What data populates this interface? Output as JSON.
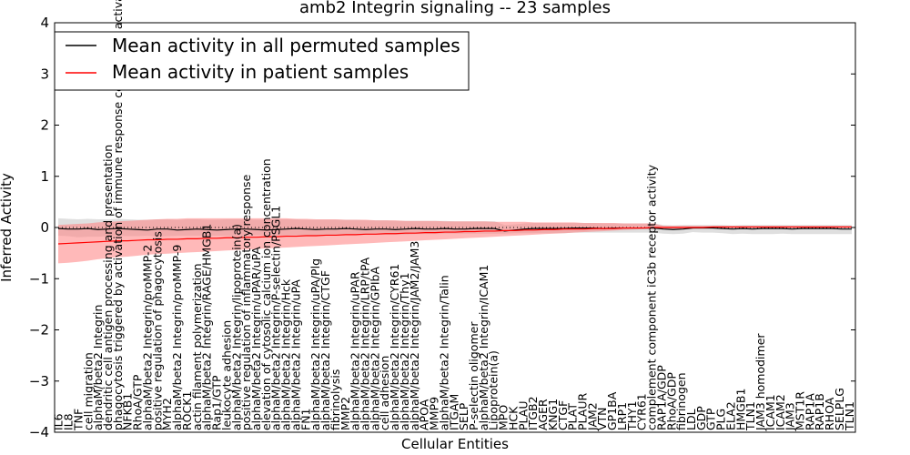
{
  "chart_data": {
    "type": "line",
    "title": "amb2 Integrin signaling -- 23 samples",
    "xlabel": "Cellular Entities",
    "ylabel": "Inferred Activity",
    "ylim": [
      -4,
      4
    ],
    "yticks": [
      -4,
      -3,
      -2,
      -1,
      0,
      1,
      2,
      3,
      4
    ],
    "ytick_labels": [
      "−4",
      "−3",
      "−2",
      "−1",
      "0",
      "1",
      "2",
      "3",
      "4"
    ],
    "legend_position": "top-left",
    "colors": {
      "permuted": "#000000",
      "patient": "#ff0000",
      "permuted_band": "#bfbfbf",
      "patient_band": "#ff8080"
    },
    "categories": [
      "IL6",
      "IL8",
      "TNF",
      "cell migration",
      "alphaM/beta2 Integrin",
      "dendritic cell antigen processing and presentation",
      "phagocytosis triggered by activation of immune response cell surface activating receptor",
      "NFKB1",
      "RhoA/GTP",
      "alphaM/beta2 Integrin/proMMP-2",
      "positive regulation of phagocytosis",
      "MYH2",
      "alphaM/beta2 Integrin/proMMP-9",
      "ROCK1",
      "actin filament polymerization",
      "alphaM/beta2 Integrin/RAGE/HMGB1",
      "Rap1/GTP",
      "leukocyte adhesion",
      "alphaM/beta2 Integrin/lipoprotein(a)",
      "positive regulation of inflammatory response",
      "alphaM/beta2 Integrin/uPAR/uPA",
      "elevation of cytosolic calcium ion concentration",
      "alphaM/beta2 Integrin/P-selectin/PSGL1",
      "alphaM/beta2 Integrin/Hck",
      "alphaM/beta2 Integrin/uPA",
      "FN1",
      "alphaM/beta2 Integrin/uPA/Plg",
      "alphaM/beta2 Integrin/CTGF",
      "fibrinolysis",
      "MMP2",
      "alphaM/beta2 Integrin/uPAR",
      "alphaM/beta2 Integrin/LRP/tPA",
      "alphaM/beta2 Integrin/GPIbA",
      "cell adhesion",
      "alphaM/beta2 Integrin/CYR61",
      "alphaM/beta2 Integrin/Thy1",
      "alphaM/beta2 Integrin/JAM2/JAM3",
      "APOA",
      "MMP9",
      "alphaM/beta2 Integrin/Talin",
      "ITGAM",
      "SELP",
      "P-selectin oligomer",
      "alphaM/beta2 Integrin/ICAM1",
      "Lipoprotein(a)",
      "MPO",
      "HCK",
      "PLAU",
      "ITGB2",
      "AGER",
      "KNG1",
      "CTGF",
      "PLAT",
      "PLAUR",
      "JAM2",
      "VTN",
      "GP1BA",
      "LRP1",
      "THY1",
      "CYR61",
      "complement component iC3b receptor activity",
      "RAP1A/GDP",
      "RhoA/GDP",
      "fibrinogen",
      "LDL",
      "GDP",
      "GTP",
      "PLG",
      "ELA2",
      "HMGB1",
      "TLN1",
      "JAM3 homodimer",
      "ICAM1",
      "ICAM2",
      "JAM3",
      "MST1R",
      "RAP1A",
      "RAP1B",
      "RHOA",
      "SELPLG",
      "TLN1"
    ],
    "series": [
      {
        "name": "Mean activity in all permuted samples",
        "values": [
          -0.02,
          -0.03,
          -0.03,
          -0.02,
          -0.04,
          -0.03,
          -0.02,
          -0.03,
          -0.04,
          -0.05,
          -0.03,
          -0.03,
          -0.05,
          -0.04,
          -0.03,
          -0.04,
          -0.05,
          -0.04,
          -0.03,
          -0.03,
          -0.04,
          -0.05,
          -0.04,
          -0.03,
          -0.02,
          -0.03,
          -0.04,
          -0.03,
          -0.03,
          -0.02,
          -0.03,
          -0.04,
          -0.03,
          -0.03,
          -0.04,
          -0.03,
          -0.02,
          -0.03,
          -0.03,
          -0.02,
          -0.03,
          -0.03,
          -0.02,
          -0.02,
          -0.02,
          -0.07,
          -0.05,
          -0.03,
          -0.02,
          -0.02,
          -0.02,
          -0.02,
          -0.01,
          -0.01,
          -0.01,
          -0.02,
          -0.01,
          -0.01,
          -0.01,
          -0.01,
          -0.01,
          -0.03,
          -0.04,
          -0.03,
          -0.01,
          -0.01,
          -0.01,
          -0.02,
          -0.03,
          -0.02,
          -0.03,
          -0.02,
          -0.02,
          -0.02,
          -0.03,
          -0.02,
          -0.02,
          -0.02,
          -0.02,
          -0.03,
          -0.03
        ],
        "lower": [
          -0.16,
          -0.17,
          -0.19,
          -0.18,
          -0.18,
          -0.17,
          -0.17,
          -0.17,
          -0.17,
          -0.16,
          -0.18,
          -0.17,
          -0.16,
          -0.16,
          -0.16,
          -0.16,
          -0.16,
          -0.16,
          -0.17,
          -0.16,
          -0.15,
          -0.15,
          -0.15,
          -0.16,
          -0.15,
          -0.16,
          -0.16,
          -0.15,
          -0.15,
          -0.15,
          -0.15,
          -0.14,
          -0.14,
          -0.14,
          -0.14,
          -0.14,
          -0.13,
          -0.13,
          -0.13,
          -0.12,
          -0.12,
          -0.12,
          -0.12,
          -0.12,
          -0.12,
          -0.12,
          -0.11,
          -0.11,
          -0.11,
          -0.11,
          -0.11,
          -0.11,
          -0.1,
          -0.1,
          -0.1,
          -0.1,
          -0.1,
          -0.1,
          -0.1,
          -0.1,
          -0.1,
          -0.12,
          -0.13,
          -0.12,
          -0.09,
          -0.1,
          -0.1,
          -0.11,
          -0.13,
          -0.12,
          -0.13,
          -0.13,
          -0.13,
          -0.12,
          -0.13,
          -0.13,
          -0.13,
          -0.13,
          -0.13,
          -0.13,
          -0.13
        ],
        "upper": [
          0.18,
          0.17,
          0.16,
          0.17,
          0.16,
          0.16,
          0.17,
          0.16,
          0.15,
          0.15,
          0.16,
          0.16,
          0.15,
          0.16,
          0.16,
          0.15,
          0.15,
          0.16,
          0.16,
          0.16,
          0.15,
          0.15,
          0.16,
          0.16,
          0.16,
          0.15,
          0.15,
          0.15,
          0.15,
          0.15,
          0.15,
          0.14,
          0.14,
          0.14,
          0.13,
          0.13,
          0.13,
          0.13,
          0.13,
          0.13,
          0.12,
          0.12,
          0.12,
          0.12,
          0.12,
          0.05,
          0.06,
          0.08,
          0.09,
          0.09,
          0.09,
          0.09,
          0.09,
          0.09,
          0.09,
          0.08,
          0.08,
          0.08,
          0.08,
          0.08,
          0.08,
          0.05,
          0.04,
          0.05,
          0.05,
          0.05,
          0.05,
          0.05,
          0.04,
          0.05,
          0.05,
          0.05,
          0.05,
          0.05,
          0.05,
          0.05,
          0.05,
          0.05,
          0.05,
          0.05,
          0.05
        ]
      },
      {
        "name": "Mean activity in patient samples",
        "values": [
          -0.32,
          -0.31,
          -0.3,
          -0.29,
          -0.28,
          -0.27,
          -0.26,
          -0.26,
          -0.25,
          -0.24,
          -0.24,
          -0.23,
          -0.23,
          -0.22,
          -0.22,
          -0.21,
          -0.21,
          -0.2,
          -0.2,
          -0.19,
          -0.19,
          -0.18,
          -0.18,
          -0.17,
          -0.17,
          -0.16,
          -0.16,
          -0.15,
          -0.15,
          -0.14,
          -0.14,
          -0.13,
          -0.13,
          -0.12,
          -0.12,
          -0.11,
          -0.11,
          -0.1,
          -0.1,
          -0.09,
          -0.09,
          -0.08,
          -0.08,
          -0.07,
          -0.07,
          -0.06,
          -0.06,
          -0.05,
          -0.05,
          -0.04,
          -0.04,
          -0.03,
          -0.03,
          -0.03,
          -0.02,
          -0.02,
          -0.02,
          -0.01,
          -0.01,
          -0.01,
          0.0,
          0.0,
          0.0,
          0.0,
          0.0,
          0.0,
          0.01,
          0.01,
          0.01,
          0.01,
          0.01,
          0.01,
          0.01,
          0.01,
          0.01,
          0.01,
          0.01,
          0.01,
          0.01,
          0.01,
          0.01
        ],
        "lower": [
          -0.7,
          -0.69,
          -0.67,
          -0.65,
          -0.62,
          -0.6,
          -0.58,
          -0.57,
          -0.55,
          -0.53,
          -0.52,
          -0.51,
          -0.5,
          -0.49,
          -0.48,
          -0.47,
          -0.46,
          -0.45,
          -0.44,
          -0.43,
          -0.42,
          -0.41,
          -0.4,
          -0.39,
          -0.38,
          -0.37,
          -0.36,
          -0.35,
          -0.34,
          -0.33,
          -0.32,
          -0.31,
          -0.3,
          -0.29,
          -0.28,
          -0.27,
          -0.26,
          -0.25,
          -0.24,
          -0.23,
          -0.22,
          -0.21,
          -0.2,
          -0.19,
          -0.18,
          -0.17,
          -0.16,
          -0.15,
          -0.14,
          -0.13,
          -0.12,
          -0.11,
          -0.1,
          -0.09,
          -0.08,
          -0.07,
          -0.06,
          -0.05,
          -0.04,
          -0.03,
          -0.03,
          -0.02,
          -0.02,
          -0.02,
          -0.02,
          -0.01,
          -0.01,
          -0.01,
          -0.01,
          -0.01,
          -0.01,
          -0.01,
          -0.01,
          -0.01,
          -0.01,
          -0.01,
          -0.01,
          -0.01,
          -0.01,
          -0.01,
          -0.01
        ],
        "upper": [
          0.05,
          0.06,
          0.07,
          0.08,
          0.1,
          0.11,
          0.12,
          0.13,
          0.14,
          0.15,
          0.16,
          0.17,
          0.17,
          0.18,
          0.18,
          0.18,
          0.18,
          0.18,
          0.18,
          0.18,
          0.18,
          0.18,
          0.18,
          0.18,
          0.17,
          0.17,
          0.16,
          0.16,
          0.16,
          0.15,
          0.15,
          0.15,
          0.14,
          0.14,
          0.14,
          0.13,
          0.13,
          0.13,
          0.13,
          0.12,
          0.12,
          0.12,
          0.12,
          0.12,
          0.11,
          0.11,
          0.11,
          0.11,
          0.1,
          0.1,
          0.1,
          0.1,
          0.1,
          0.09,
          0.09,
          0.09,
          0.09,
          0.08,
          0.08,
          0.08,
          0.08,
          0.03,
          0.03,
          0.03,
          0.03,
          0.03,
          0.03,
          0.03,
          0.03,
          0.03,
          0.03,
          0.03,
          0.03,
          0.03,
          0.03,
          0.03,
          0.03,
          0.03,
          0.03,
          0.03,
          0.03
        ]
      }
    ]
  }
}
